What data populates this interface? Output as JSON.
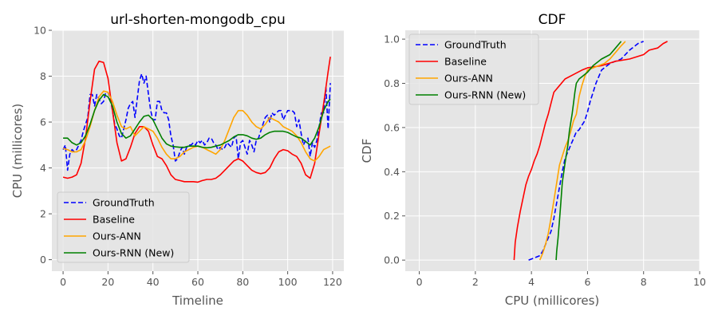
{
  "chart_data": [
    {
      "type": "line",
      "title": "url-shorten-mongodb_cpu",
      "xlabel": "Timeline",
      "ylabel": "CPU (millicores)",
      "xlim": [
        -5,
        125
      ],
      "ylim": [
        -0.5,
        10
      ],
      "xticks": [
        0,
        20,
        40,
        60,
        80,
        100,
        120
      ],
      "yticks": [
        0,
        2,
        4,
        6,
        8,
        10
      ],
      "grid": true,
      "legend_position": "lower-left",
      "series": [
        {
          "name": "GroundTruth",
          "color": "#0000ff",
          "style": "dashed",
          "x": [
            0,
            1,
            2,
            3,
            4,
            5,
            6,
            7,
            8,
            9,
            10,
            11,
            12,
            13,
            14,
            15,
            16,
            17,
            18,
            19,
            20,
            21,
            22,
            23,
            24,
            25,
            26,
            27,
            28,
            29,
            30,
            31,
            32,
            33,
            34,
            35,
            36,
            37,
            38,
            39,
            40,
            41,
            42,
            43,
            44,
            45,
            46,
            47,
            48,
            49,
            50,
            51,
            52,
            53,
            54,
            55,
            56,
            57,
            58,
            59,
            60,
            61,
            62,
            63,
            64,
            65,
            66,
            67,
            68,
            69,
            70,
            71,
            72,
            73,
            74,
            75,
            76,
            77,
            78,
            79,
            80,
            81,
            82,
            83,
            84,
            85,
            86,
            87,
            88,
            89,
            90,
            91,
            92,
            93,
            94,
            95,
            96,
            97,
            98,
            99,
            100,
            101,
            102,
            103,
            104,
            105,
            106,
            107,
            108,
            109,
            110,
            111,
            112,
            113,
            114,
            115,
            116,
            117,
            118,
            119
          ],
          "values": [
            4.8,
            5.0,
            3.9,
            4.6,
            4.8,
            4.7,
            4.8,
            5.0,
            5.2,
            5.6,
            5.9,
            6.2,
            7.2,
            7.2,
            6.7,
            7.2,
            7.0,
            6.8,
            6.9,
            7.3,
            7.3,
            7.0,
            6.5,
            5.9,
            5.7,
            5.4,
            5.3,
            5.7,
            6.1,
            6.6,
            6.8,
            6.9,
            6.2,
            7.0,
            7.8,
            8.1,
            7.7,
            8.0,
            7.2,
            6.5,
            6.1,
            6.1,
            6.9,
            6.9,
            6.5,
            6.4,
            6.4,
            6.1,
            5.4,
            5.0,
            4.3,
            4.4,
            4.7,
            4.9,
            4.6,
            4.9,
            5.0,
            5.0,
            5.1,
            5.0,
            5.2,
            5.1,
            5.2,
            5.0,
            5.1,
            5.3,
            5.3,
            5.1,
            5.0,
            4.8,
            4.9,
            4.8,
            4.9,
            5.1,
            5.0,
            4.9,
            5.3,
            5.4,
            4.4,
            5.1,
            5.2,
            4.9,
            4.6,
            5.2,
            5.0,
            4.7,
            5.2,
            5.3,
            5.6,
            5.9,
            6.2,
            6.3,
            6.0,
            6.4,
            6.3,
            6.4,
            6.5,
            6.5,
            6.1,
            6.3,
            6.5,
            6.5,
            6.5,
            6.4,
            5.8,
            6.1,
            5.5,
            5.0,
            5.2,
            5.3,
            4.5,
            5.1,
            4.9,
            5.2,
            5.8,
            6.4,
            6.4,
            7.5,
            5.7,
            7.7
          ]
        },
        {
          "name": "Baseline",
          "color": "#ff0000",
          "style": "solid",
          "x": [
            0,
            2,
            4,
            6,
            8,
            10,
            12,
            14,
            16,
            18,
            20,
            22,
            24,
            26,
            28,
            30,
            32,
            34,
            36,
            38,
            40,
            42,
            44,
            46,
            48,
            50,
            52,
            54,
            56,
            58,
            60,
            62,
            64,
            66,
            68,
            70,
            72,
            74,
            76,
            78,
            80,
            82,
            84,
            86,
            88,
            90,
            92,
            94,
            96,
            98,
            100,
            102,
            104,
            106,
            108,
            110,
            112,
            114,
            116,
            118,
            119
          ],
          "values": [
            3.6,
            3.55,
            3.6,
            3.7,
            4.2,
            5.3,
            6.9,
            8.3,
            8.65,
            8.6,
            7.9,
            6.5,
            5.1,
            4.3,
            4.4,
            4.9,
            5.5,
            5.8,
            5.8,
            5.6,
            5.0,
            4.5,
            4.4,
            4.1,
            3.7,
            3.5,
            3.45,
            3.4,
            3.4,
            3.4,
            3.38,
            3.45,
            3.5,
            3.5,
            3.55,
            3.7,
            3.9,
            4.1,
            4.3,
            4.4,
            4.3,
            4.1,
            3.9,
            3.8,
            3.75,
            3.8,
            4.0,
            4.4,
            4.7,
            4.8,
            4.75,
            4.6,
            4.5,
            4.2,
            3.7,
            3.55,
            4.2,
            5.5,
            6.8,
            8.2,
            8.85
          ]
        },
        {
          "name": "Ours-ANN",
          "color": "#ffa500",
          "style": "solid",
          "x": [
            0,
            2,
            4,
            6,
            8,
            10,
            12,
            14,
            16,
            18,
            20,
            22,
            24,
            26,
            28,
            30,
            32,
            34,
            36,
            38,
            40,
            42,
            44,
            46,
            48,
            50,
            52,
            54,
            56,
            58,
            60,
            62,
            64,
            66,
            68,
            70,
            72,
            74,
            76,
            78,
            80,
            82,
            84,
            86,
            88,
            90,
            92,
            94,
            96,
            98,
            100,
            102,
            104,
            106,
            108,
            110,
            112,
            114,
            116,
            118,
            119
          ],
          "values": [
            4.85,
            4.8,
            4.7,
            4.7,
            4.8,
            5.2,
            5.8,
            6.5,
            7.1,
            7.35,
            7.3,
            6.9,
            6.3,
            5.8,
            5.7,
            5.8,
            5.4,
            5.6,
            5.8,
            5.7,
            5.6,
            5.3,
            4.9,
            4.6,
            4.4,
            4.4,
            4.5,
            4.7,
            4.8,
            4.9,
            4.95,
            4.9,
            4.8,
            4.7,
            4.6,
            4.8,
            5.2,
            5.7,
            6.2,
            6.5,
            6.5,
            6.3,
            6.0,
            5.8,
            5.7,
            5.9,
            6.2,
            6.1,
            6.0,
            5.8,
            5.7,
            5.6,
            5.4,
            5.1,
            4.7,
            4.4,
            4.3,
            4.5,
            4.8,
            4.9,
            4.95
          ]
        },
        {
          "name": "Ours-RNN (New)",
          "color": "#008000",
          "style": "solid",
          "x": [
            0,
            2,
            4,
            6,
            8,
            10,
            12,
            14,
            16,
            18,
            20,
            22,
            24,
            26,
            28,
            30,
            32,
            34,
            36,
            38,
            40,
            42,
            44,
            46,
            48,
            50,
            52,
            54,
            56,
            58,
            60,
            62,
            64,
            66,
            68,
            70,
            72,
            74,
            76,
            78,
            80,
            82,
            84,
            86,
            88,
            90,
            92,
            94,
            96,
            98,
            100,
            102,
            104,
            106,
            108,
            110,
            112,
            114,
            116,
            118,
            119
          ],
          "values": [
            5.3,
            5.3,
            5.1,
            5.0,
            5.1,
            5.4,
            5.9,
            6.5,
            6.95,
            7.2,
            7.1,
            6.7,
            6.0,
            5.5,
            5.3,
            5.4,
            5.7,
            6.0,
            6.25,
            6.3,
            6.1,
            5.7,
            5.3,
            5.05,
            4.95,
            4.92,
            4.9,
            4.9,
            4.95,
            4.95,
            4.95,
            4.9,
            4.88,
            4.9,
            4.95,
            5.0,
            5.1,
            5.2,
            5.35,
            5.45,
            5.45,
            5.4,
            5.3,
            5.25,
            5.3,
            5.45,
            5.55,
            5.6,
            5.6,
            5.6,
            5.55,
            5.45,
            5.35,
            5.3,
            5.15,
            5.0,
            5.3,
            5.8,
            6.5,
            6.9,
            7.0
          ]
        }
      ]
    },
    {
      "type": "line",
      "title": "CDF",
      "xlabel": "CPU (millicores)",
      "ylabel": "CDF",
      "xlim": [
        -0.5,
        10
      ],
      "ylim": [
        -0.05,
        1.04
      ],
      "xticks": [
        0,
        2,
        4,
        6,
        8,
        10
      ],
      "yticks": [
        0.0,
        0.2,
        0.4,
        0.6,
        0.8,
        1.0
      ],
      "grid": true,
      "legend_position": "upper-left",
      "series": [
        {
          "name": "GroundTruth",
          "color": "#0000ff",
          "style": "dashed",
          "x": [
            3.9,
            4.1,
            4.3,
            4.4,
            4.5,
            4.6,
            4.7,
            4.8,
            4.9,
            5.0,
            5.1,
            5.2,
            5.3,
            5.4,
            5.5,
            5.6,
            5.7,
            5.8,
            5.9,
            6.0,
            6.1,
            6.2,
            6.3,
            6.4,
            6.5,
            6.6,
            6.8,
            7.0,
            7.2,
            7.5,
            7.7,
            7.8,
            8.0
          ],
          "values": [
            0.0,
            0.01,
            0.02,
            0.04,
            0.07,
            0.1,
            0.13,
            0.19,
            0.26,
            0.33,
            0.4,
            0.46,
            0.49,
            0.52,
            0.55,
            0.58,
            0.59,
            0.61,
            0.63,
            0.67,
            0.72,
            0.76,
            0.8,
            0.83,
            0.86,
            0.87,
            0.89,
            0.9,
            0.91,
            0.95,
            0.97,
            0.98,
            0.99
          ]
        },
        {
          "name": "Baseline",
          "color": "#ff0000",
          "style": "solid",
          "x": [
            3.38,
            3.42,
            3.5,
            3.6,
            3.7,
            3.8,
            3.9,
            4.0,
            4.1,
            4.2,
            4.3,
            4.4,
            4.5,
            4.6,
            4.7,
            4.8,
            5.0,
            5.2,
            5.5,
            5.8,
            6.0,
            6.5,
            7.0,
            7.5,
            8.0,
            8.2,
            8.5,
            8.7,
            8.85
          ],
          "values": [
            0.0,
            0.08,
            0.15,
            0.22,
            0.28,
            0.34,
            0.38,
            0.41,
            0.45,
            0.48,
            0.52,
            0.57,
            0.62,
            0.66,
            0.71,
            0.76,
            0.79,
            0.82,
            0.84,
            0.86,
            0.87,
            0.88,
            0.9,
            0.91,
            0.93,
            0.95,
            0.96,
            0.98,
            0.99
          ]
        },
        {
          "name": "Ours-ANN",
          "color": "#ffa500",
          "style": "solid",
          "x": [
            4.3,
            4.4,
            4.5,
            4.6,
            4.7,
            4.8,
            4.9,
            5.0,
            5.1,
            5.2,
            5.3,
            5.4,
            5.5,
            5.6,
            5.7,
            5.8,
            5.9,
            6.0,
            6.2,
            6.4,
            6.6,
            6.8,
            7.0,
            7.2,
            7.35
          ],
          "values": [
            0.0,
            0.03,
            0.07,
            0.12,
            0.19,
            0.27,
            0.35,
            0.43,
            0.47,
            0.51,
            0.54,
            0.58,
            0.63,
            0.66,
            0.74,
            0.79,
            0.83,
            0.86,
            0.87,
            0.88,
            0.89,
            0.91,
            0.94,
            0.97,
            0.99
          ]
        },
        {
          "name": "Ours-RNN (New)",
          "color": "#008000",
          "style": "solid",
          "x": [
            4.88,
            4.9,
            4.95,
            5.0,
            5.05,
            5.1,
            5.2,
            5.3,
            5.35,
            5.4,
            5.45,
            5.5,
            5.55,
            5.6,
            5.7,
            5.8,
            6.0,
            6.2,
            6.5,
            6.8,
            7.0,
            7.2
          ],
          "values": [
            0.0,
            0.04,
            0.1,
            0.18,
            0.26,
            0.35,
            0.44,
            0.52,
            0.58,
            0.62,
            0.66,
            0.71,
            0.76,
            0.8,
            0.82,
            0.83,
            0.85,
            0.88,
            0.91,
            0.93,
            0.96,
            0.99
          ]
        }
      ]
    }
  ]
}
